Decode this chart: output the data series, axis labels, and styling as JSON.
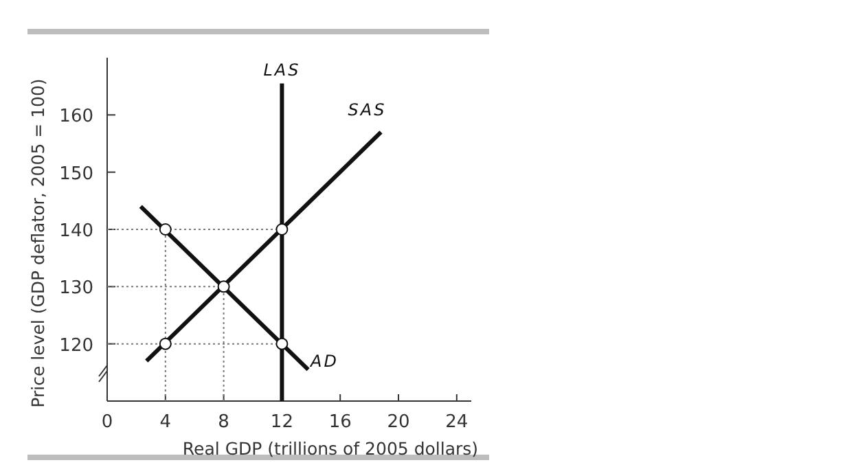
{
  "chart_data": {
    "type": "line",
    "xlabel": "Real GDP (trillions of 2005 dollars)",
    "ylabel": "Price level (GDP deflator, 2005 = 100)",
    "xlim": [
      0,
      25
    ],
    "ylim": [
      110,
      170
    ],
    "xticks": [
      0,
      4,
      8,
      12,
      16,
      20,
      24
    ],
    "yticks": [
      120,
      130,
      140,
      150,
      160
    ],
    "grid": false,
    "series": [
      {
        "name": "LAS",
        "color": "#111111",
        "x": [
          12,
          12
        ],
        "values": [
          110,
          165.5
        ],
        "line_style": "solid"
      },
      {
        "name": "SAS",
        "color": "#111111",
        "x": [
          2.7,
          18.8
        ],
        "values": [
          117,
          157
        ],
        "line_style": "solid"
      },
      {
        "name": "AD",
        "color": "#111111",
        "x": [
          2.3,
          13.8
        ],
        "values": [
          144,
          115.5
        ],
        "line_style": "solid"
      },
      {
        "color": "#777777",
        "x": [
          0,
          12
        ],
        "values": [
          140,
          140
        ],
        "line_style": "dotted"
      },
      {
        "color": "#777777",
        "x": [
          0,
          8
        ],
        "values": [
          130,
          130
        ],
        "line_style": "dotted"
      },
      {
        "color": "#777777",
        "x": [
          0,
          12
        ],
        "values": [
          120,
          120
        ],
        "line_style": "dotted"
      },
      {
        "color": "#777777",
        "x": [
          4,
          4
        ],
        "values": [
          110,
          140
        ],
        "line_style": "dotted"
      },
      {
        "color": "#777777",
        "x": [
          8,
          8
        ],
        "values": [
          110,
          130
        ],
        "line_style": "dotted"
      },
      {
        "type": "scatter",
        "color": "#111111",
        "x": [
          4,
          4,
          8,
          12,
          12
        ],
        "values": [
          140,
          120,
          130,
          140,
          120
        ],
        "marker": "circle"
      }
    ]
  }
}
